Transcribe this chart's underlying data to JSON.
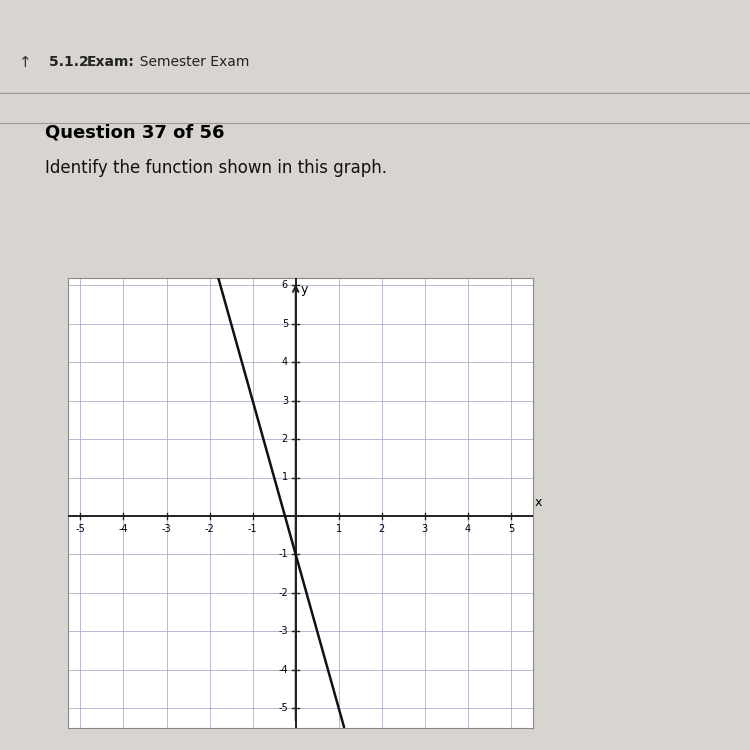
{
  "title_bar_text": "5.1.2  Exam:  Semester Exam",
  "question_text": "Question 37 of 56",
  "prompt_text": "Identify the function shown in this graph.",
  "slope": -4,
  "intercept": -1,
  "xlim": [
    -5.3,
    5.5
  ],
  "ylim": [
    -5.5,
    6.2
  ],
  "x_ticks": [
    -5,
    -4,
    -3,
    -2,
    -1,
    1,
    2,
    3,
    4,
    5
  ],
  "y_ticks": [
    -5,
    -4,
    -3,
    -2,
    -1,
    1,
    2,
    3,
    4,
    5,
    6
  ],
  "line_color": "#111111",
  "line_width": 1.8,
  "grid_color": "#aab0cc",
  "grid_lw": 0.6,
  "axis_color": "#222222",
  "axis_lw": 1.4,
  "bg_color": "#c8c8c8",
  "panel_color": "#d0d0d0",
  "content_bg": "#d8d5d0",
  "top_bar_color": "#1c1c28",
  "header_bg": "#c8c5c0",
  "white_bg": "#ffffff",
  "header_sep_color": "#999999"
}
